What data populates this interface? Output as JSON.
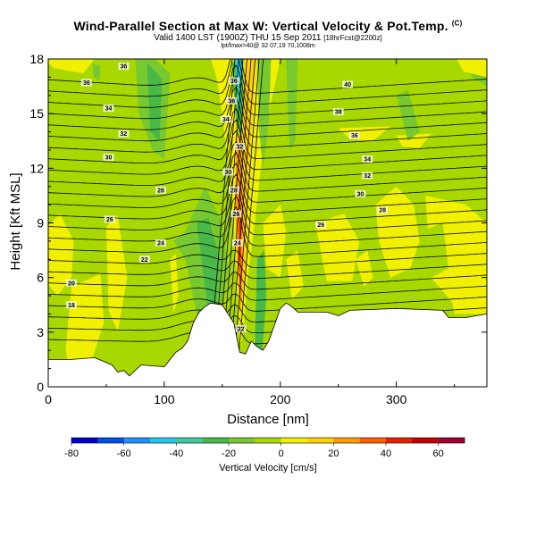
{
  "header": {
    "title": "Wind-Parallel Section at Max W: Vertical Velocity & Pot.Temp.",
    "title_suffix": "(C)",
    "valid_line": "Valid 1400 LST (1900Z) THU 15 Sep 2011",
    "valid_suffix": "[18hrFcst@2200z]",
    "sub_line": "lpt/lmax=40@ 32 07,19 70,1008m"
  },
  "chart_data": {
    "type": "heatmap",
    "xlabel": "Distance [nm]",
    "ylabel": "Height [Kft MSL]",
    "xlim": [
      0,
      378
    ],
    "ylim": [
      0,
      18
    ],
    "x_ticks": [
      0,
      100,
      200,
      300
    ],
    "y_ticks": [
      0,
      3,
      6,
      9,
      12,
      15,
      18
    ],
    "colorbar": {
      "label": "Vertical Velocity [cm/s]",
      "ticks": [
        -80,
        -60,
        -40,
        -20,
        0,
        20,
        40,
        60
      ],
      "range": [
        -80,
        70
      ],
      "colors": [
        "#0000cc",
        "#0050e8",
        "#1e90ff",
        "#20c8e8",
        "#40c8a0",
        "#48b848",
        "#78c830",
        "#a8d800",
        "#f0f000",
        "#ffd000",
        "#ff9c00",
        "#ff6000",
        "#e82000",
        "#c80000",
        "#a00030"
      ]
    },
    "terrain_profile": [
      {
        "x": 0,
        "y": 1.5
      },
      {
        "x": 20,
        "y": 1.5
      },
      {
        "x": 40,
        "y": 1.6
      },
      {
        "x": 55,
        "y": 1.2
      },
      {
        "x": 60,
        "y": 0.8
      },
      {
        "x": 65,
        "y": 0.9
      },
      {
        "x": 70,
        "y": 0.6
      },
      {
        "x": 80,
        "y": 1.2
      },
      {
        "x": 100,
        "y": 1.1
      },
      {
        "x": 105,
        "y": 1.5
      },
      {
        "x": 110,
        "y": 1.9
      },
      {
        "x": 115,
        "y": 2.1
      },
      {
        "x": 120,
        "y": 2.5
      },
      {
        "x": 125,
        "y": 3.5
      },
      {
        "x": 130,
        "y": 4.1
      },
      {
        "x": 135,
        "y": 4.4
      },
      {
        "x": 140,
        "y": 4.6
      },
      {
        "x": 150,
        "y": 4.5
      },
      {
        "x": 160,
        "y": 3.5
      },
      {
        "x": 165,
        "y": 1.9
      },
      {
        "x": 170,
        "y": 1.8
      },
      {
        "x": 175,
        "y": 2.5
      },
      {
        "x": 180,
        "y": 2.2
      },
      {
        "x": 185,
        "y": 2.0
      },
      {
        "x": 190,
        "y": 2.5
      },
      {
        "x": 195,
        "y": 3.4
      },
      {
        "x": 200,
        "y": 4.3
      },
      {
        "x": 205,
        "y": 4.6
      },
      {
        "x": 210,
        "y": 4.4
      },
      {
        "x": 215,
        "y": 4.1
      },
      {
        "x": 240,
        "y": 4.1
      },
      {
        "x": 245,
        "y": 4.0
      },
      {
        "x": 250,
        "y": 3.9
      },
      {
        "x": 260,
        "y": 4.2
      },
      {
        "x": 300,
        "y": 4.3
      },
      {
        "x": 340,
        "y": 4.2
      },
      {
        "x": 345,
        "y": 3.8
      },
      {
        "x": 360,
        "y": 3.8
      },
      {
        "x": 378,
        "y": 4.0
      }
    ],
    "contour_labels": [
      {
        "text": "36",
        "x": 65,
        "y": 17.6
      },
      {
        "text": "36",
        "x": 33,
        "y": 16.7
      },
      {
        "text": "34",
        "x": 52,
        "y": 15.3
      },
      {
        "text": "32",
        "x": 65,
        "y": 13.9
      },
      {
        "text": "30",
        "x": 52,
        "y": 12.6
      },
      {
        "text": "28",
        "x": 97,
        "y": 10.8
      },
      {
        "text": "26",
        "x": 53,
        "y": 9.2
      },
      {
        "text": "24",
        "x": 97,
        "y": 7.9
      },
      {
        "text": "22",
        "x": 83,
        "y": 7.0
      },
      {
        "text": "20",
        "x": 20,
        "y": 5.7
      },
      {
        "text": "18",
        "x": 20,
        "y": 4.5
      },
      {
        "text": "40",
        "x": 258,
        "y": 16.6
      },
      {
        "text": "38",
        "x": 250,
        "y": 15.1
      },
      {
        "text": "36",
        "x": 264,
        "y": 13.8
      },
      {
        "text": "34",
        "x": 275,
        "y": 12.5
      },
      {
        "text": "32",
        "x": 275,
        "y": 11.6
      },
      {
        "text": "30",
        "x": 269,
        "y": 10.6
      },
      {
        "text": "28",
        "x": 288,
        "y": 9.7
      },
      {
        "text": "26",
        "x": 235,
        "y": 8.9
      },
      {
        "text": "36",
        "x": 160,
        "y": 16.8
      },
      {
        "text": "36",
        "x": 158,
        "y": 15.7
      },
      {
        "text": "34",
        "x": 153,
        "y": 14.7
      },
      {
        "text": "32",
        "x": 165,
        "y": 13.2
      },
      {
        "text": "30",
        "x": 155,
        "y": 11.8
      },
      {
        "text": "28",
        "x": 160,
        "y": 10.8
      },
      {
        "text": "26",
        "x": 162,
        "y": 9.5
      },
      {
        "text": "24",
        "x": 163,
        "y": 7.9
      },
      {
        "text": "22",
        "x": 166,
        "y": 3.2
      }
    ]
  }
}
